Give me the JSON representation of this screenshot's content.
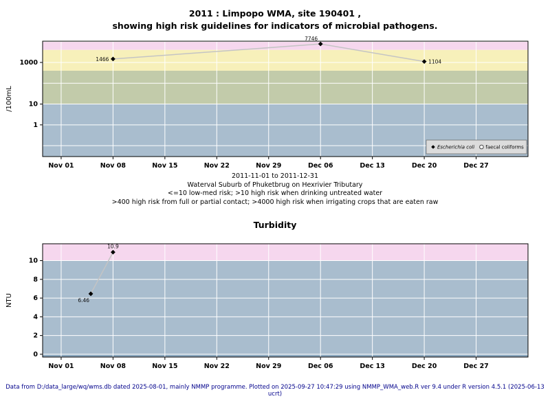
{
  "page": {
    "background": "#ffffff",
    "footer": "Data from D:/data_large/wq/wms.db dated 2025-08-01, mainly NMMP programme. Plotted on 2025-09-27 10:47:29 using NMMP_WMA_web.R ver 9.4 under R version 4.5.1 (2025-06-13 ucrt)",
    "footer_color": "#00008b"
  },
  "colors": {
    "band_pink": "#f6d7ee",
    "band_yellow": "#f7f0ba",
    "band_green": "#c2cbaa",
    "band_blue": "#a9bdce",
    "band_blue_dark": "#8aa6bd",
    "gridline": "#ffffff",
    "series_line": "#c4c4c4",
    "marker": "#000000",
    "legend_bg": "#dcdcdc",
    "legend_border": "#666666"
  },
  "chart_data": [
    {
      "type": "line",
      "title_lines": [
        "2011 : Limpopo WMA, site 190401 ,",
        "showing high risk guidelines for indicators of microbial pathogens."
      ],
      "ylabel": "/100mL",
      "yscale": "log10",
      "ylim": [
        0.03,
        10500
      ],
      "ytick_values": [
        1,
        10,
        1000
      ],
      "ytick_labels": [
        "1",
        "10",
        "1000"
      ],
      "grid_y": [
        0.1,
        1,
        10,
        100,
        1000,
        10000
      ],
      "xlim": [
        -2.5,
        63
      ],
      "xtick_values": [
        0,
        7,
        14,
        21,
        28,
        35,
        42,
        49,
        56
      ],
      "xtick_labels": [
        "Nov 01",
        "Nov 08",
        "Nov 15",
        "Nov 22",
        "Nov 29",
        "Dec 06",
        "Dec 13",
        "Dec 20",
        "Dec 27"
      ],
      "bands": [
        {
          "from": 4000,
          "to": 10500,
          "color": "#f6d7ee"
        },
        {
          "from": 400,
          "to": 4000,
          "color": "#f7f0ba"
        },
        {
          "from": 10,
          "to": 400,
          "color": "#c2cbaa"
        },
        {
          "from": 0.03,
          "to": 10,
          "color": "#a9bdce"
        }
      ],
      "series": [
        {
          "name": "Escherichia coli",
          "marker": "diamond-filled",
          "line_color": "#c4c4c4",
          "points": [
            {
              "x": 7,
              "y": 1466,
              "label": "1466",
              "label_pos": "left"
            },
            {
              "x": 35,
              "y": 7746,
              "label": "7746",
              "label_pos": "above-left"
            },
            {
              "x": 49,
              "y": 1104,
              "label": "1104",
              "label_pos": "right"
            }
          ]
        },
        {
          "name": "faecal coliforms",
          "marker": "circle-open",
          "line_color": "#c4c4c4",
          "points": []
        }
      ],
      "legend": {
        "position": "bottom-right",
        "items": [
          {
            "label": "Escherichia coli",
            "italic": true,
            "marker": "diamond-filled"
          },
          {
            "label": "faecal coliforms",
            "italic": false,
            "marker": "circle-open"
          }
        ]
      },
      "subtitle_lines": [
        "2011-11-01 to 2011-12-31",
        "Waterval Suburb of Phuketbrug on Hexrivier Tributary",
        "<=10 low-med risk; >10 high risk when drinking untreated water",
        ">400 high risk from full or partial contact; >4000 high risk when irrigating crops that are eaten raw"
      ]
    },
    {
      "type": "line",
      "title_lines": [
        "Turbidity"
      ],
      "ylabel": "NTU",
      "yscale": "linear",
      "ylim": [
        -0.3,
        11.8
      ],
      "ytick_values": [
        0,
        2,
        4,
        6,
        8,
        10
      ],
      "ytick_labels": [
        "0",
        "2",
        "4",
        "6",
        "8",
        "10"
      ],
      "grid_y": [
        0,
        2,
        4,
        6,
        8,
        10
      ],
      "xlim": [
        -2.5,
        63
      ],
      "xtick_values": [
        0,
        7,
        14,
        21,
        28,
        35,
        42,
        49,
        56
      ],
      "xtick_labels": [
        "Nov 01",
        "Nov 08",
        "Nov 15",
        "Nov 22",
        "Nov 29",
        "Dec 06",
        "Dec 13",
        "Dec 20",
        "Dec 27"
      ],
      "bands": [
        {
          "from": 10,
          "to": 11.8,
          "color": "#f6d7ee"
        },
        {
          "from": -0.08,
          "to": 10,
          "color": "#a9bdce"
        },
        {
          "from": -0.3,
          "to": -0.08,
          "color": "#8aa6bd"
        }
      ],
      "series": [
        {
          "name": "Turbidity",
          "marker": "diamond-filled",
          "line_color": "#c4c4c4",
          "points": [
            {
              "x": 4,
              "y": 6.46,
              "label": "6.46",
              "label_pos": "below-left"
            },
            {
              "x": 7,
              "y": 10.9,
              "label": "10.9",
              "label_pos": "above"
            }
          ]
        }
      ]
    }
  ]
}
